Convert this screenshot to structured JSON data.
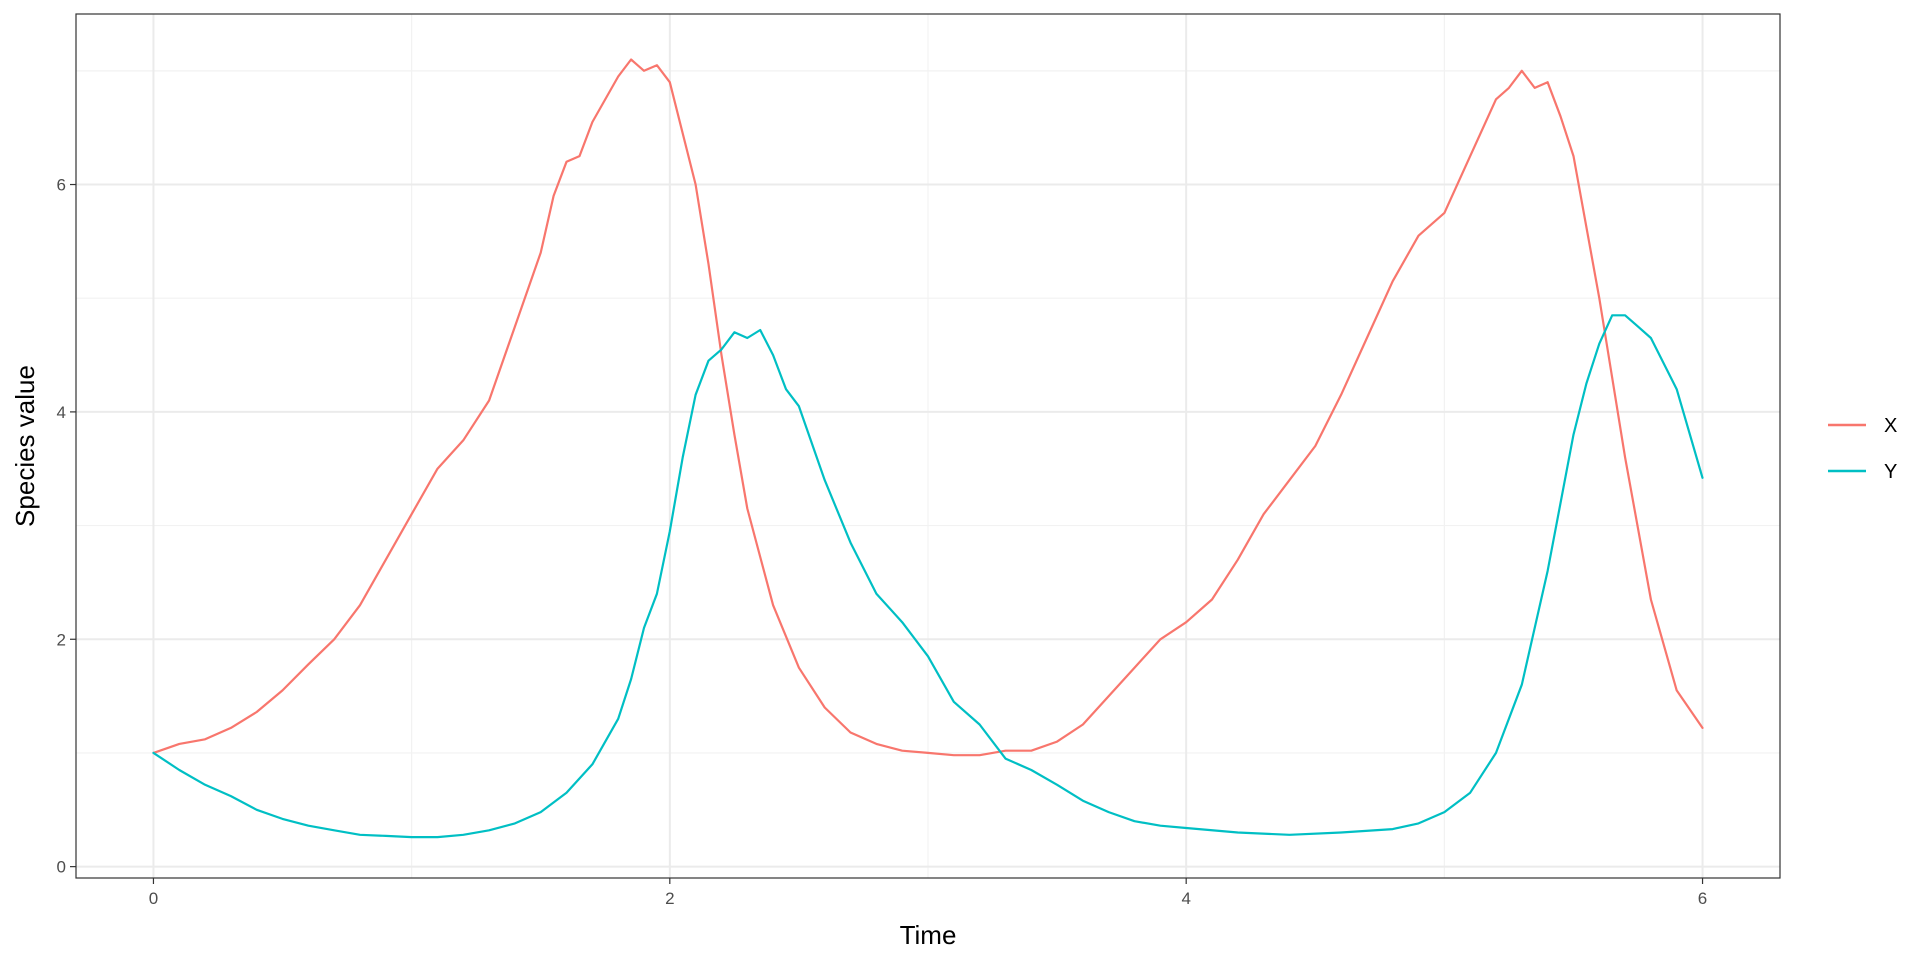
{
  "chart_data": {
    "type": "line",
    "title": "",
    "xlabel": "Time",
    "ylabel": "Species value",
    "xlim": [
      -0.3,
      6.3
    ],
    "ylim": [
      -0.1,
      7.5
    ],
    "x_ticks": [
      0,
      2,
      4,
      6
    ],
    "y_ticks": [
      0,
      2,
      4,
      6
    ],
    "grid": true,
    "legend_position": "right",
    "series": [
      {
        "name": "X",
        "color": "#F8766D",
        "x": [
          0,
          0.1,
          0.2,
          0.3,
          0.4,
          0.5,
          0.6,
          0.7,
          0.8,
          0.9,
          1.0,
          1.1,
          1.2,
          1.3,
          1.4,
          1.5,
          1.55,
          1.6,
          1.65,
          1.7,
          1.8,
          1.85,
          1.9,
          1.95,
          2.0,
          2.1,
          2.15,
          2.2,
          2.25,
          2.3,
          2.4,
          2.5,
          2.6,
          2.7,
          2.8,
          2.9,
          3.0,
          3.1,
          3.2,
          3.3,
          3.4,
          3.5,
          3.6,
          3.7,
          3.8,
          3.9,
          4.0,
          4.1,
          4.2,
          4.3,
          4.4,
          4.5,
          4.6,
          4.7,
          4.8,
          4.9,
          5.0,
          5.1,
          5.2,
          5.25,
          5.3,
          5.35,
          5.4,
          5.45,
          5.5,
          5.6,
          5.7,
          5.8,
          5.9,
          6.0
        ],
        "y": [
          1.0,
          1.08,
          1.12,
          1.22,
          1.36,
          1.55,
          1.78,
          2.0,
          2.3,
          2.7,
          3.1,
          3.5,
          3.75,
          4.1,
          4.75,
          5.4,
          5.9,
          6.2,
          6.25,
          6.55,
          6.95,
          7.1,
          7.0,
          7.05,
          6.9,
          6.0,
          5.3,
          4.5,
          3.8,
          3.15,
          2.3,
          1.75,
          1.4,
          1.18,
          1.08,
          1.02,
          1.0,
          0.98,
          0.98,
          1.02,
          1.02,
          1.1,
          1.25,
          1.5,
          1.75,
          2.0,
          2.15,
          2.35,
          2.7,
          3.1,
          3.4,
          3.7,
          4.15,
          4.65,
          5.15,
          5.55,
          5.75,
          6.25,
          6.75,
          6.85,
          7.0,
          6.85,
          6.9,
          6.6,
          6.25,
          5.0,
          3.6,
          2.35,
          1.55,
          1.22
        ]
      },
      {
        "name": "Y",
        "color": "#00BFC4",
        "x": [
          0,
          0.1,
          0.2,
          0.3,
          0.4,
          0.5,
          0.6,
          0.7,
          0.8,
          0.9,
          1.0,
          1.1,
          1.2,
          1.3,
          1.4,
          1.5,
          1.6,
          1.7,
          1.8,
          1.85,
          1.9,
          1.95,
          2.0,
          2.05,
          2.1,
          2.15,
          2.2,
          2.25,
          2.3,
          2.35,
          2.4,
          2.45,
          2.5,
          2.6,
          2.7,
          2.8,
          2.9,
          3.0,
          3.1,
          3.2,
          3.3,
          3.4,
          3.5,
          3.6,
          3.7,
          3.8,
          3.9,
          4.0,
          4.2,
          4.4,
          4.6,
          4.8,
          4.9,
          5.0,
          5.1,
          5.2,
          5.3,
          5.4,
          5.5,
          5.55,
          5.6,
          5.65,
          5.7,
          5.75,
          5.8,
          5.9,
          6.0
        ],
        "y": [
          1.0,
          0.85,
          0.72,
          0.62,
          0.5,
          0.42,
          0.36,
          0.32,
          0.28,
          0.27,
          0.26,
          0.26,
          0.28,
          0.32,
          0.38,
          0.48,
          0.65,
          0.9,
          1.3,
          1.65,
          2.1,
          2.4,
          2.95,
          3.6,
          4.15,
          4.45,
          4.55,
          4.7,
          4.65,
          4.72,
          4.5,
          4.2,
          4.05,
          3.4,
          2.85,
          2.4,
          2.15,
          1.85,
          1.45,
          1.25,
          0.95,
          0.85,
          0.72,
          0.58,
          0.48,
          0.4,
          0.36,
          0.34,
          0.3,
          0.28,
          0.3,
          0.33,
          0.38,
          0.48,
          0.65,
          1.0,
          1.6,
          2.6,
          3.8,
          4.25,
          4.6,
          4.85,
          4.85,
          4.75,
          4.65,
          4.2,
          3.42
        ]
      }
    ]
  }
}
